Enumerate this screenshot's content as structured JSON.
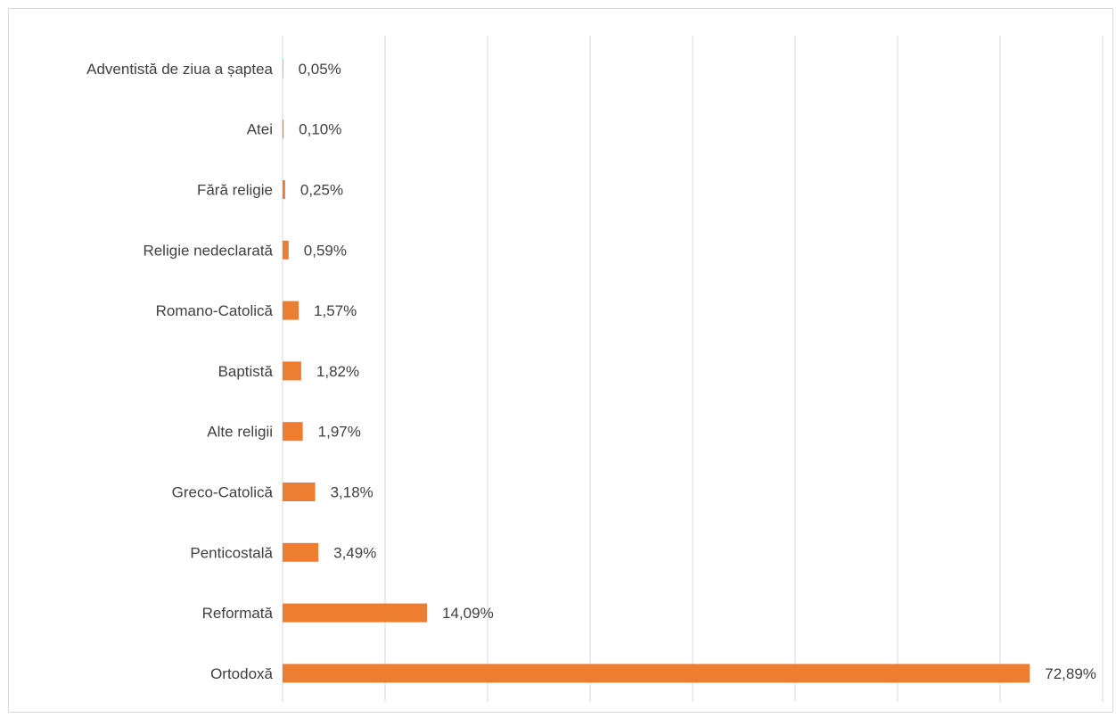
{
  "chart_data": {
    "type": "bar",
    "orientation": "horizontal",
    "title": "",
    "categories": [
      "Adventistă de ziua a șaptea",
      "Atei",
      "Fără religie",
      "Religie nedeclarată",
      "Romano-Catolică",
      "Baptistă",
      "Alte religii",
      "Greco-Catolică",
      "Penticostală",
      "Reformată",
      "Ortodoxă"
    ],
    "values": [
      0.05,
      0.1,
      0.25,
      0.59,
      1.57,
      1.82,
      1.97,
      3.18,
      3.49,
      14.09,
      72.89
    ],
    "value_labels": [
      "0,05%",
      "0,10%",
      "0,25%",
      "0,59%",
      "1,57%",
      "1,82%",
      "1,97%",
      "3,18%",
      "3,49%",
      "14,09%",
      "72,89%"
    ],
    "xlim": [
      0,
      80
    ],
    "x_gridlines": true,
    "x_tick_labels_visible": false,
    "legend": "none",
    "bar_color": "#ed7d31",
    "gridline_color": "#d9d9d9",
    "label_color": "#404040"
  }
}
